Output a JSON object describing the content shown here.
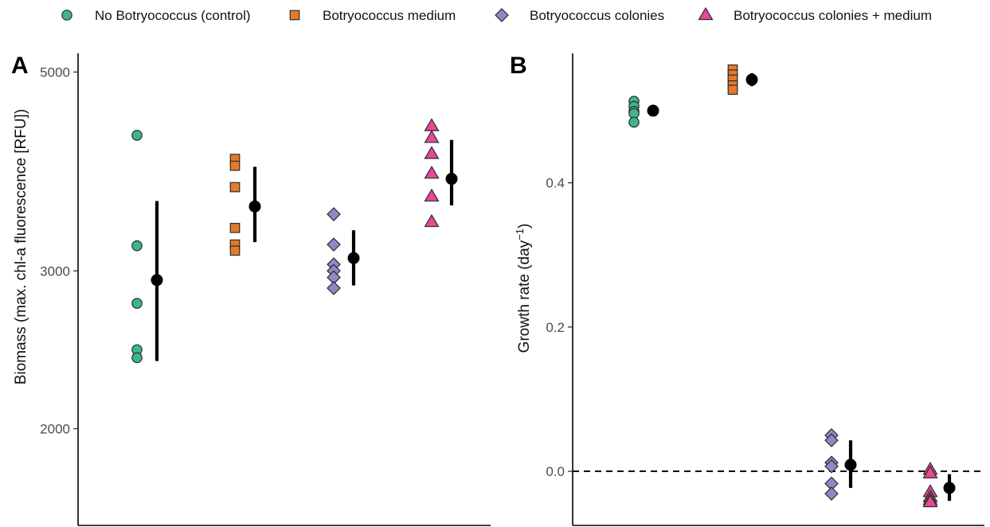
{
  "legend": [
    {
      "label": "No Botryococcus (control)",
      "shape": "circle",
      "color": "#3db58f"
    },
    {
      "label": "Botryococcus medium",
      "shape": "square",
      "color": "#e57a2a"
    },
    {
      "label": "Botryococcus colonies",
      "shape": "diamond",
      "color": "#8e89c6"
    },
    {
      "label": "Botryococcus colonies + medium",
      "shape": "triangle",
      "color": "#e8479a"
    }
  ],
  "chart_data": [
    {
      "type": "scatter",
      "panel_label": "A",
      "ylabel": "Biomass (max. chl-a fluorescence [RFU])",
      "yscale": "log",
      "yticks": [
        2000,
        3000,
        5000
      ],
      "ylim": [
        1560,
        5300
      ],
      "xlabel": "",
      "groups": [
        {
          "name": "No Botryococcus (control)",
          "shape": "circle",
          "color": "#3db58f",
          "points": [
            4250,
            3200,
            2760,
            2450,
            2400
          ],
          "mean": 2930,
          "ci": [
            2380,
            3590
          ]
        },
        {
          "name": "Botryococcus medium",
          "shape": "square",
          "color": "#e57a2a",
          "points": [
            4000,
            3930,
            3720,
            3350,
            3210,
            3160
          ],
          "mean": 3540,
          "ci": [
            3230,
            3920
          ]
        },
        {
          "name": "Botryococcus colonies",
          "shape": "diamond",
          "color": "#8e89c6",
          "points": [
            3470,
            3210,
            3050,
            3000,
            2950,
            2870
          ],
          "mean": 3100,
          "ci": [
            2890,
            3330
          ]
        },
        {
          "name": "Botryococcus colonies + medium",
          "shape": "triangle",
          "color": "#e8479a",
          "points": [
            4350,
            4220,
            4050,
            3850,
            3630,
            3400
          ],
          "mean": 3800,
          "ci": [
            3550,
            4200
          ]
        }
      ]
    },
    {
      "type": "scatter",
      "panel_label": "B",
      "ylabel": "Growth rate (day",
      "ylabel_superscript": "−1",
      "ylabel_close": ")",
      "yticks": [
        0.0,
        0.2,
        0.4
      ],
      "ytick_labels": [
        "0.0",
        "0.2",
        "0.4"
      ],
      "ylim": [
        -0.075,
        0.585
      ],
      "hline": 0.0,
      "xlabel": "",
      "groups": [
        {
          "name": "No Botryococcus (control)",
          "shape": "circle",
          "color": "#3db58f",
          "points": [
            0.513,
            0.506,
            0.499,
            0.496,
            0.484
          ],
          "mean": 0.5,
          "ci": [
            0.494,
            0.506
          ]
        },
        {
          "name": "Botryococcus medium",
          "shape": "square",
          "color": "#e57a2a",
          "points": [
            0.557,
            0.55,
            0.543,
            0.535,
            0.529
          ],
          "mean": 0.543,
          "ci": [
            0.534,
            0.552
          ]
        },
        {
          "name": "Botryococcus colonies",
          "shape": "diamond",
          "color": "#8e89c6",
          "points": [
            0.05,
            0.043,
            0.012,
            0.007,
            -0.017,
            -0.031
          ],
          "mean": 0.009,
          "ci": [
            -0.023,
            0.043
          ]
        },
        {
          "name": "Botryococcus colonies + medium",
          "shape": "triangle",
          "color": "#e8479a",
          "points": [
            0.002,
            -0.003,
            -0.029,
            -0.036,
            -0.04,
            -0.043
          ],
          "mean": -0.023,
          "ci": [
            -0.041,
            -0.004
          ]
        }
      ]
    }
  ]
}
